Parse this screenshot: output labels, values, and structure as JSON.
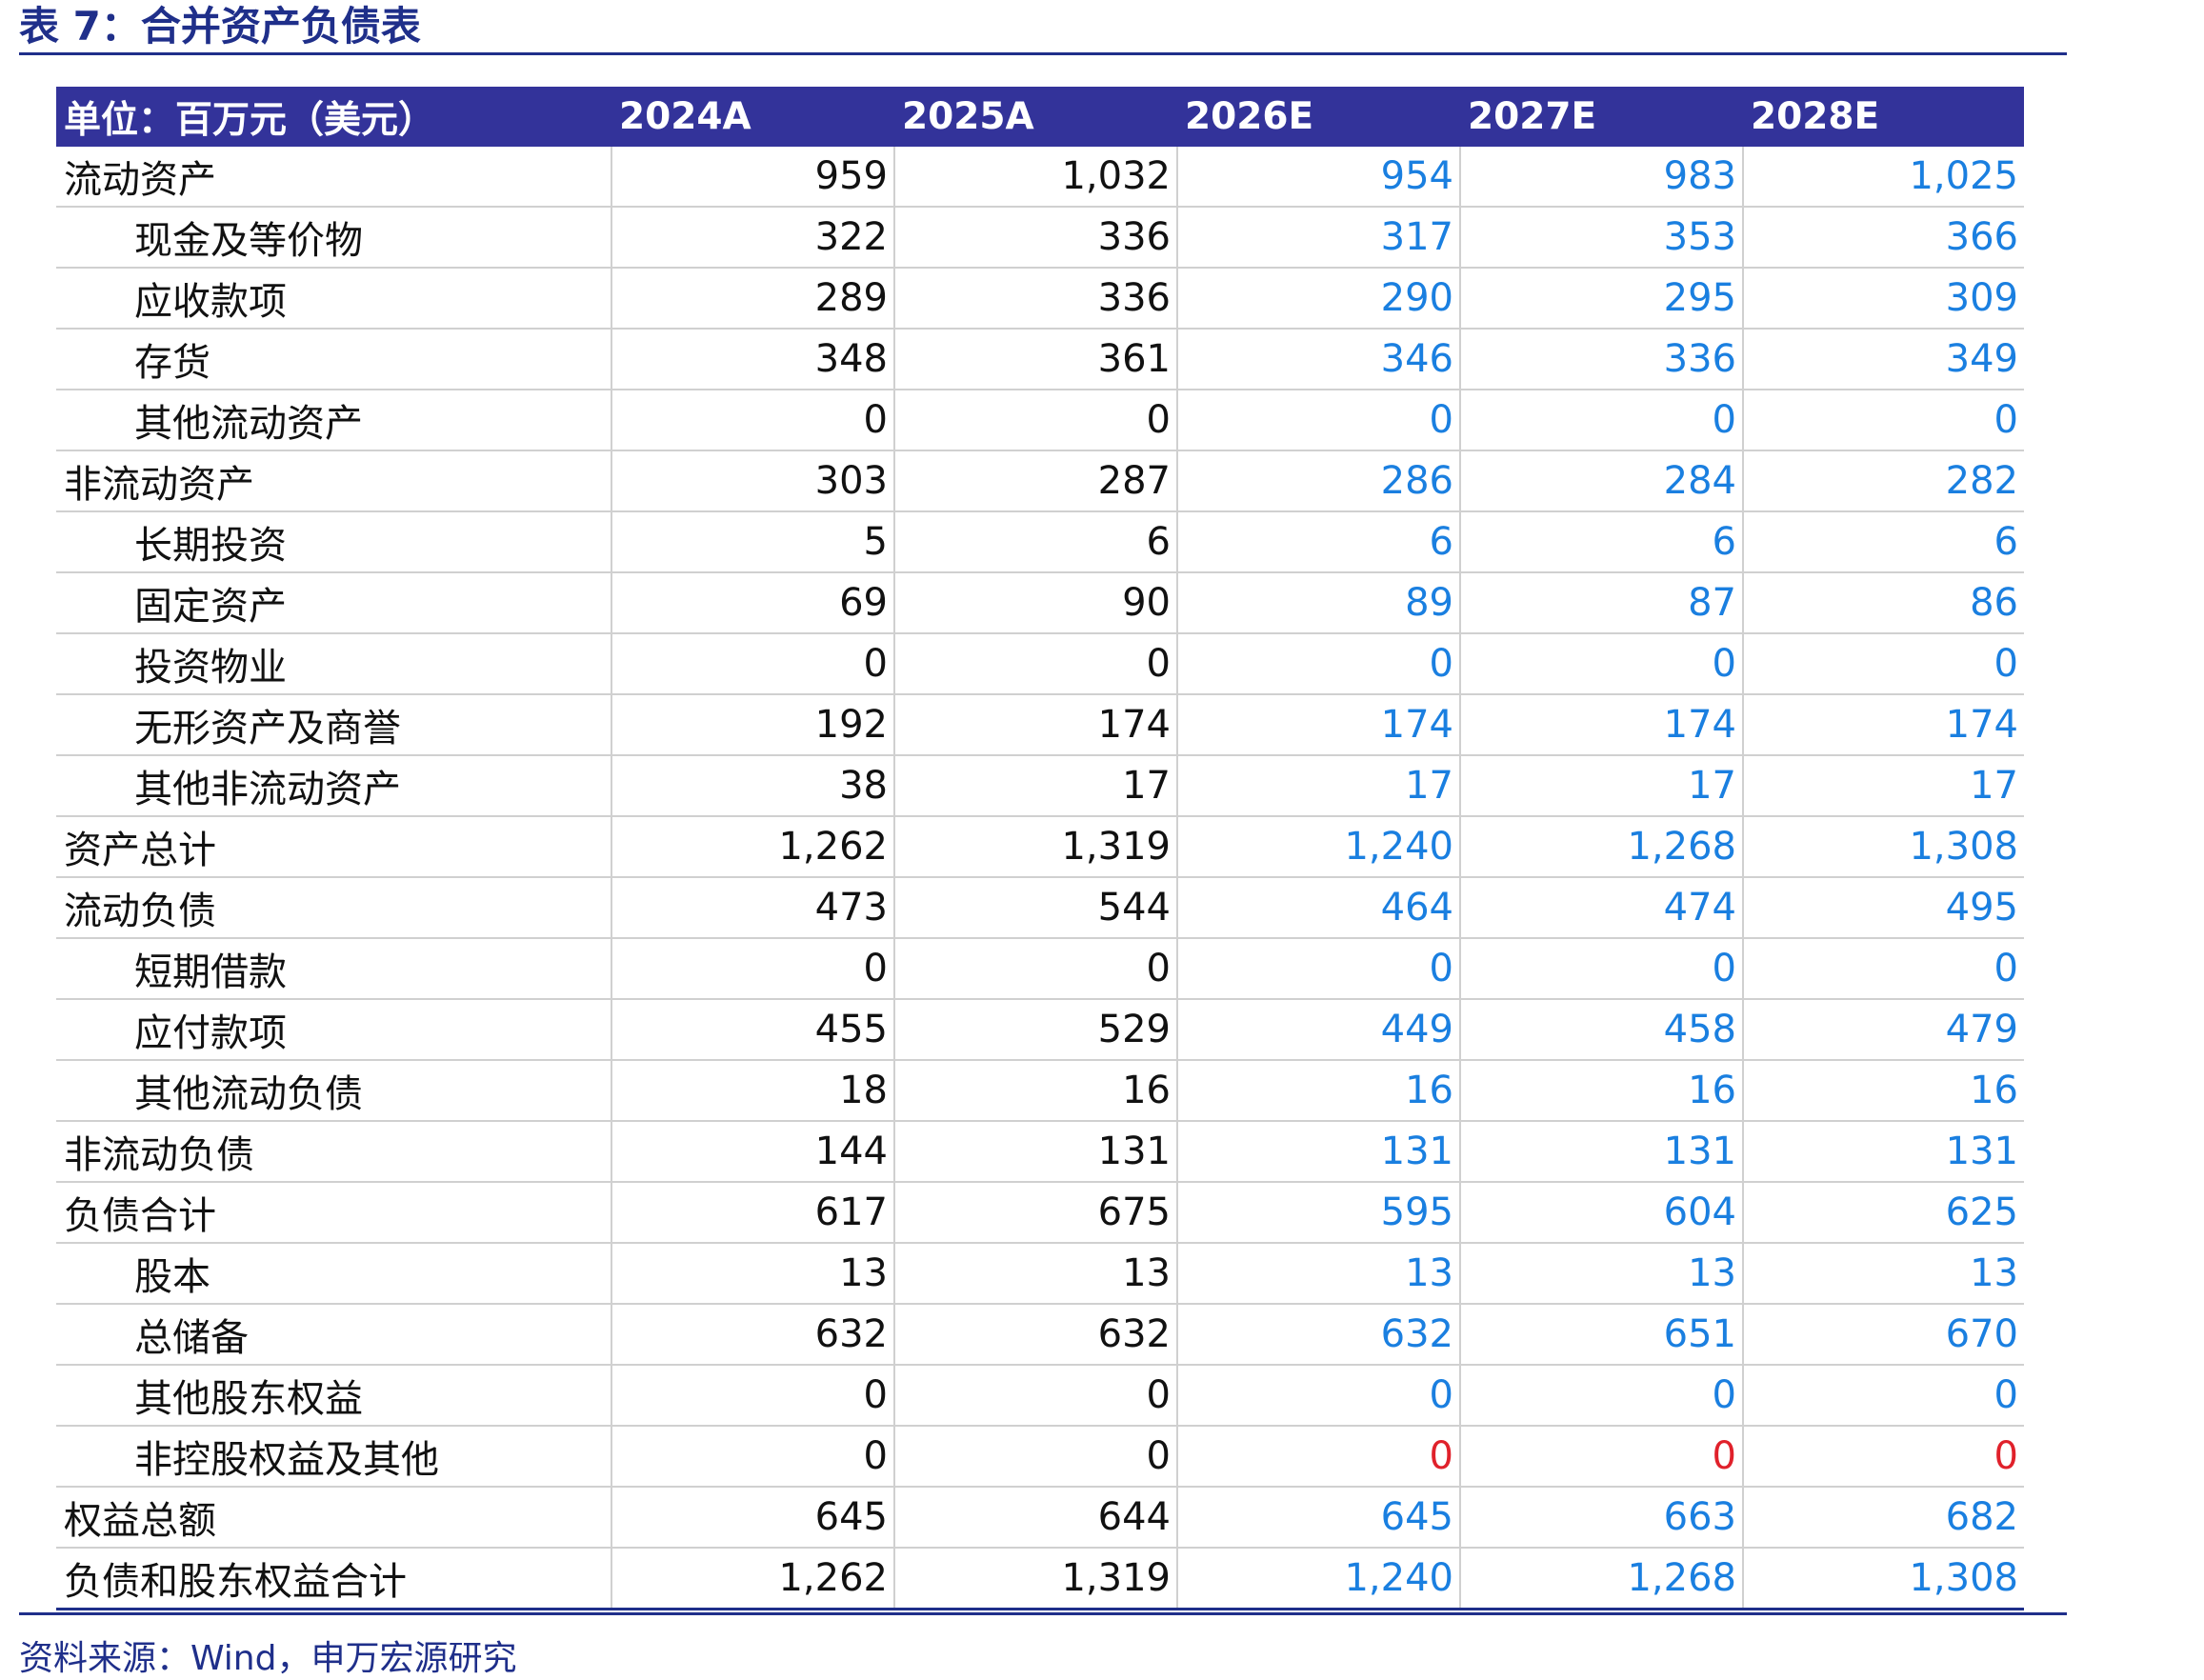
{
  "title": "表 7：合并资产负债表",
  "table": {
    "headers": [
      "单位：百万元（美元）",
      "2024A",
      "2025A",
      "2026E",
      "2027E",
      "2028E"
    ],
    "rows": [
      {
        "label": "流动资产",
        "indent": false,
        "values": [
          "959",
          "1,032",
          "954",
          "983",
          "1,025"
        ]
      },
      {
        "label": "现金及等价物",
        "indent": true,
        "values": [
          "322",
          "336",
          "317",
          "353",
          "366"
        ]
      },
      {
        "label": "应收款项",
        "indent": true,
        "values": [
          "289",
          "336",
          "290",
          "295",
          "309"
        ]
      },
      {
        "label": "存货",
        "indent": true,
        "values": [
          "348",
          "361",
          "346",
          "336",
          "349"
        ]
      },
      {
        "label": "其他流动资产",
        "indent": true,
        "values": [
          "0",
          "0",
          "0",
          "0",
          "0"
        ]
      },
      {
        "label": "非流动资产",
        "indent": false,
        "values": [
          "303",
          "287",
          "286",
          "284",
          "282"
        ]
      },
      {
        "label": "长期投资",
        "indent": true,
        "values": [
          "5",
          "6",
          "6",
          "6",
          "6"
        ]
      },
      {
        "label": "固定资产",
        "indent": true,
        "values": [
          "69",
          "90",
          "89",
          "87",
          "86"
        ]
      },
      {
        "label": "投资物业",
        "indent": true,
        "values": [
          "0",
          "0",
          "0",
          "0",
          "0"
        ]
      },
      {
        "label": "无形资产及商誉",
        "indent": true,
        "values": [
          "192",
          "174",
          "174",
          "174",
          "174"
        ]
      },
      {
        "label": "其他非流动资产",
        "indent": true,
        "values": [
          "38",
          "17",
          "17",
          "17",
          "17"
        ]
      },
      {
        "label": "资产总计",
        "indent": false,
        "values": [
          "1,262",
          "1,319",
          "1,240",
          "1,268",
          "1,308"
        ]
      },
      {
        "label": "流动负债",
        "indent": false,
        "values": [
          "473",
          "544",
          "464",
          "474",
          "495"
        ]
      },
      {
        "label": "短期借款",
        "indent": true,
        "values": [
          "0",
          "0",
          "0",
          "0",
          "0"
        ]
      },
      {
        "label": "应付款项",
        "indent": true,
        "values": [
          "455",
          "529",
          "449",
          "458",
          "479"
        ]
      },
      {
        "label": "其他流动负债",
        "indent": true,
        "values": [
          "18",
          "16",
          "16",
          "16",
          "16"
        ]
      },
      {
        "label": "非流动负债",
        "indent": false,
        "values": [
          "144",
          "131",
          "131",
          "131",
          "131"
        ]
      },
      {
        "label": "负债合计",
        "indent": false,
        "values": [
          "617",
          "675",
          "595",
          "604",
          "625"
        ]
      },
      {
        "label": "股本",
        "indent": true,
        "values": [
          "13",
          "13",
          "13",
          "13",
          "13"
        ]
      },
      {
        "label": "总储备",
        "indent": true,
        "values": [
          "632",
          "632",
          "632",
          "651",
          "670"
        ]
      },
      {
        "label": "其他股东权益",
        "indent": true,
        "values": [
          "0",
          "0",
          "0",
          "0",
          "0"
        ]
      },
      {
        "label": "非控股权益及其他",
        "indent": true,
        "values": [
          "0",
          "0",
          "0",
          "0",
          "0"
        ],
        "forecast_negative_color": true
      },
      {
        "label": "权益总额",
        "indent": false,
        "values": [
          "645",
          "644",
          "645",
          "663",
          "682"
        ]
      },
      {
        "label": "负债和股东权益合计",
        "indent": false,
        "values": [
          "1,262",
          "1,319",
          "1,240",
          "1,268",
          "1,308"
        ]
      }
    ]
  },
  "colors": {
    "header_bg": "#33339a",
    "title": "#1f2f8a",
    "estimate": "#1a7fe0",
    "negative": "#e0212b"
  },
  "source": "资料来源：Wind，申万宏源研究"
}
